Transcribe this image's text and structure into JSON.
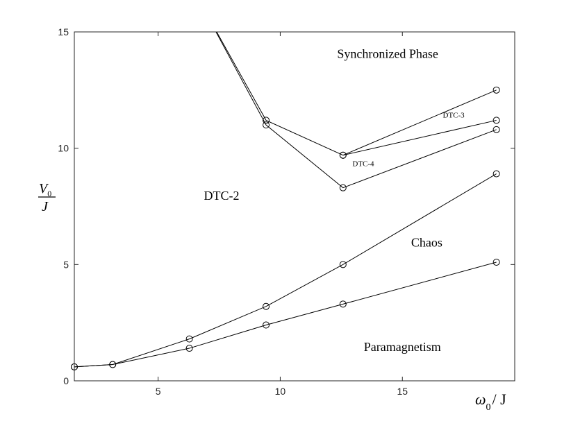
{
  "chart_data": {
    "type": "line",
    "xlim": [
      1.57,
      19.6
    ],
    "ylim": [
      0,
      15
    ],
    "xticks": [
      5,
      10,
      15
    ],
    "yticks": [
      0,
      5,
      10,
      15
    ],
    "grid": false,
    "xlabel": {
      "main": "ω",
      "sub": "0",
      "rest": "/ J"
    },
    "ylabel": {
      "numerator": "V",
      "sub": "0",
      "denominator": "J"
    },
    "series": [
      {
        "x": [
          1.57,
          3.14,
          6.28,
          9.42,
          12.57,
          18.85
        ],
        "y": [
          0.6,
          0.7,
          1.8,
          3.2,
          5.0,
          8.9
        ],
        "markers": [
          true,
          true,
          true,
          true,
          true,
          true
        ]
      },
      {
        "x": [
          1.57,
          3.14,
          6.28,
          9.42,
          12.57,
          18.85
        ],
        "y": [
          0.6,
          0.7,
          1.4,
          2.4,
          3.3,
          5.1
        ],
        "markers": [
          true,
          true,
          true,
          true,
          true,
          true
        ]
      },
      {
        "x": [
          6.6,
          9.42,
          12.57,
          18.85
        ],
        "y": [
          16.5,
          11.2,
          9.7,
          12.5
        ],
        "markers": [
          false,
          true,
          true,
          true
        ]
      },
      {
        "x": [
          6.6,
          9.42,
          12.57,
          18.85
        ],
        "y": [
          16.5,
          11.0,
          8.3,
          10.8
        ],
        "markers": [
          false,
          true,
          true,
          true
        ]
      },
      {
        "x": [
          12.57,
          18.85
        ],
        "y": [
          9.7,
          11.2
        ],
        "markers": [
          true,
          true
        ]
      }
    ],
    "annotations": [
      {
        "text": "Synchronized Phase",
        "x": 14.4,
        "y": 14.0,
        "size": "large"
      },
      {
        "text": "DTC-2",
        "x": 7.6,
        "y": 7.9,
        "size": "large"
      },
      {
        "text": "Chaos",
        "x": 16.0,
        "y": 5.9,
        "size": "large"
      },
      {
        "text": "Paramagnetism",
        "x": 15.0,
        "y": 1.4,
        "size": "large"
      },
      {
        "text": "DTC-3",
        "x": 17.1,
        "y": 11.4,
        "size": "small"
      },
      {
        "text": "DTC-4",
        "x": 13.4,
        "y": 9.3,
        "size": "small"
      }
    ]
  }
}
